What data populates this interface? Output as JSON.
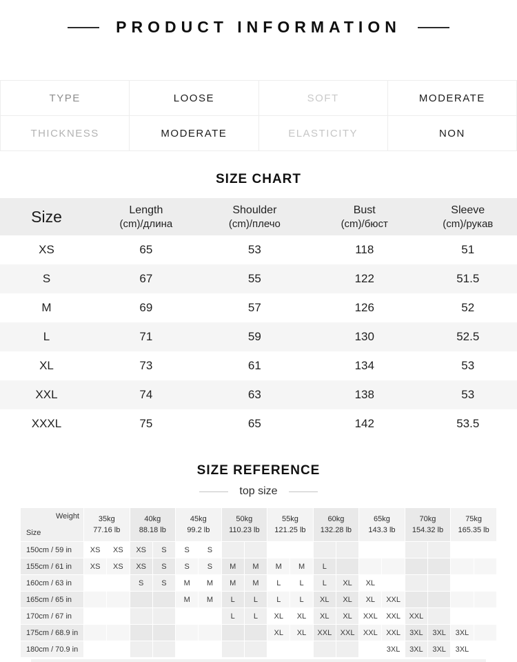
{
  "page": {
    "title": "PRODUCT INFORMATION"
  },
  "attributes": {
    "cells": [
      "TYPE",
      "LOOSE",
      "SOFT",
      "MODERATE",
      "THICKNESS",
      "MODERATE",
      "ELASTICITY",
      "NON"
    ]
  },
  "size_chart": {
    "title": "SIZE CHART",
    "columns": [
      {
        "line1": "Size",
        "line2": ""
      },
      {
        "line1": "Length",
        "line2": "(cm)/длина"
      },
      {
        "line1": "Shoulder",
        "line2": "(cm)/плечо"
      },
      {
        "line1": "Bust",
        "line2": "(cm)/бюст"
      },
      {
        "line1": "Sleeve",
        "line2": "(cm)/рукав"
      }
    ],
    "rows": [
      [
        "XS",
        "65",
        "53",
        "118",
        "51"
      ],
      [
        "S",
        "67",
        "55",
        "122",
        "51.5"
      ],
      [
        "M",
        "69",
        "57",
        "126",
        "52"
      ],
      [
        "L",
        "71",
        "59",
        "130",
        "52.5"
      ],
      [
        "XL",
        "73",
        "61",
        "134",
        "53"
      ],
      [
        "XXL",
        "74",
        "63",
        "138",
        "53"
      ],
      [
        "XXXL",
        "75",
        "65",
        "142",
        "53.5"
      ]
    ]
  },
  "size_reference": {
    "title": "SIZE REFERENCE",
    "subtitle": "top size",
    "corner": {
      "top_right": "Weight",
      "bottom_left": "Size"
    },
    "weights": [
      {
        "kg": "35kg",
        "lb": "77.16 lb"
      },
      {
        "kg": "40kg",
        "lb": "88.18 lb"
      },
      {
        "kg": "45kg",
        "lb": "99.2 lb"
      },
      {
        "kg": "50kg",
        "lb": "110.23 lb"
      },
      {
        "kg": "55kg",
        "lb": "121.25 lb"
      },
      {
        "kg": "60kg",
        "lb": "132.28 lb"
      },
      {
        "kg": "65kg",
        "lb": "143.3 lb"
      },
      {
        "kg": "70kg",
        "lb": "154.32 lb"
      },
      {
        "kg": "75kg",
        "lb": "165.35 lb"
      }
    ],
    "rows": [
      {
        "height": "150cm /  59 in",
        "cells": [
          "XS",
          "XS",
          "XS",
          "S",
          "S",
          "S",
          "",
          "",
          "",
          "",
          "",
          "",
          "",
          "",
          "",
          "",
          "",
          ""
        ]
      },
      {
        "height": "155cm /  61 in",
        "cells": [
          "XS",
          "XS",
          "XS",
          "S",
          "S",
          "S",
          "M",
          "M",
          "M",
          "M",
          "L",
          "",
          "",
          "",
          "",
          "",
          "",
          ""
        ]
      },
      {
        "height": "160cm /  63 in",
        "cells": [
          "",
          "",
          "S",
          "S",
          "M",
          "M",
          "M",
          "M",
          "L",
          "L",
          "L",
          "XL",
          "XL",
          "",
          "",
          "",
          "",
          ""
        ]
      },
      {
        "height": "165cm /  65 in",
        "cells": [
          "",
          "",
          "",
          "",
          "M",
          "M",
          "L",
          "L",
          "L",
          "L",
          "XL",
          "XL",
          "XL",
          "XXL",
          "",
          "",
          "",
          ""
        ]
      },
      {
        "height": "170cm /  67 in",
        "cells": [
          "",
          "",
          "",
          "",
          "",
          "",
          "L",
          "L",
          "XL",
          "XL",
          "XL",
          "XL",
          "XXL",
          "XXL",
          "XXL",
          "",
          "",
          ""
        ]
      },
      {
        "height": "175cm /  68.9 in",
        "cells": [
          "",
          "",
          "",
          "",
          "",
          "",
          "",
          "",
          "XL",
          "XL",
          "XXL",
          "XXL",
          "XXL",
          "XXL",
          "3XL",
          "3XL",
          "3XL",
          ""
        ]
      },
      {
        "height": "180cm /  70.9 in",
        "cells": [
          "",
          "",
          "",
          "",
          "",
          "",
          "",
          "",
          "",
          "",
          "",
          "",
          "",
          "3XL",
          "3XL",
          "3XL",
          "3XL",
          ""
        ]
      }
    ]
  }
}
